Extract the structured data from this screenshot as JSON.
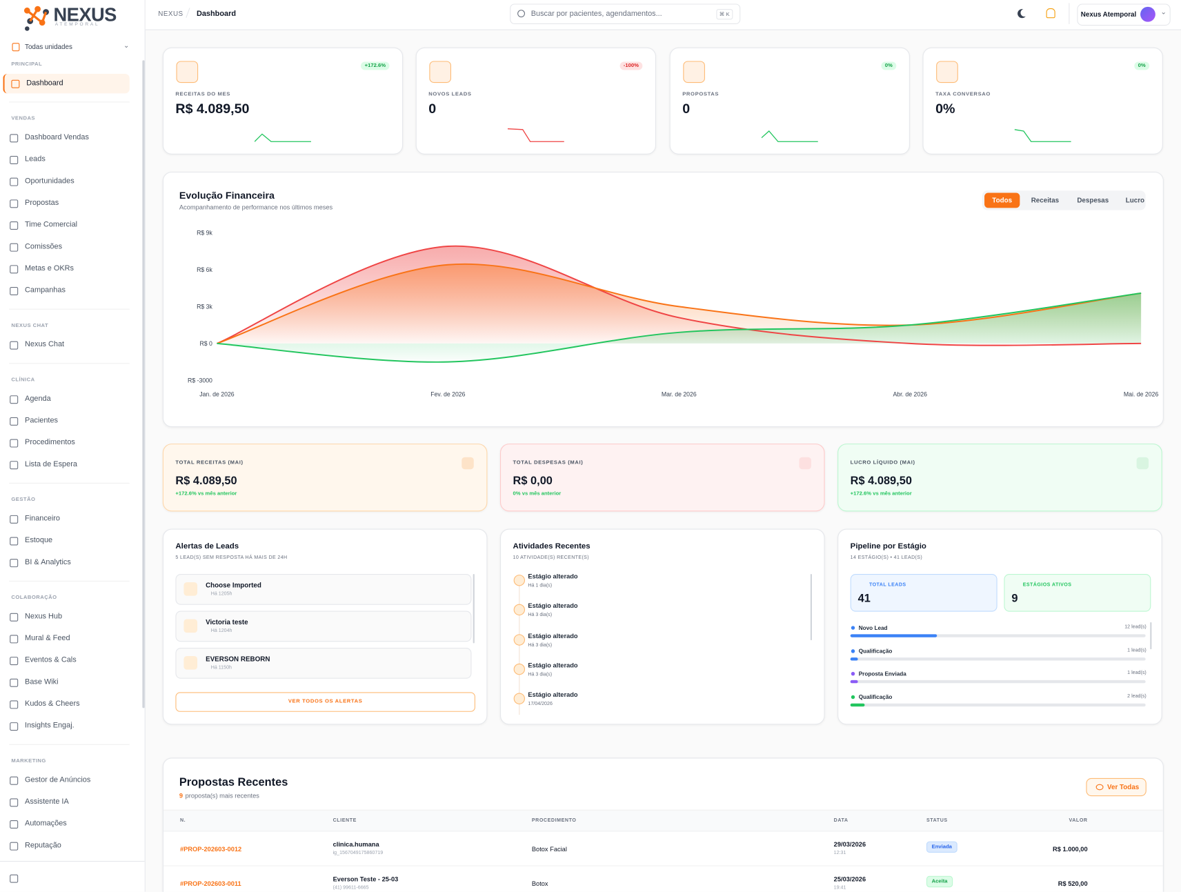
{
  "sidebar": {
    "logo_title": "NEXUS",
    "logo_subtitle": "ATEMPORAL",
    "unit_selector": "Todas unidades",
    "sections": [
      {
        "title": "PRINCIPAL",
        "items": [
          "Dashboard"
        ]
      },
      {
        "title": "VENDAS",
        "items": [
          "Dashboard Vendas",
          "Leads",
          "Oportunidades",
          "Propostas",
          "Time Comercial",
          "Comissões",
          "Metas e OKRs",
          "Campanhas"
        ]
      },
      {
        "title": "NEXUS CHAT",
        "items": [
          "Nexus Chat"
        ]
      },
      {
        "title": "CLÍNICA",
        "items": [
          "Agenda",
          "Pacientes",
          "Procedimentos",
          "Lista de Espera"
        ]
      },
      {
        "title": "GESTÃO",
        "items": [
          "Financeiro",
          "Estoque",
          "BI & Analytics"
        ]
      },
      {
        "title": "COLABORAÇÃO",
        "items": [
          "Nexus Hub",
          "Mural & Feed",
          "Eventos & Cals",
          "Base Wiki",
          "Kudos & Cheers",
          "Insights Engaj."
        ]
      },
      {
        "title": "MARKETING",
        "items": [
          "Gestor de Anúncios",
          "Assistente IA",
          "Automações",
          "Reputação"
        ]
      }
    ]
  },
  "topbar": {
    "breadcrumb": [
      "NEXUS",
      "Dashboard"
    ],
    "search_placeholder": "Buscar por pacientes, agendamentos...",
    "shortcut": "⌘ K",
    "user_name": "Nexus Atemporal"
  },
  "kpis": [
    {
      "label": "RECEITAS DO MES",
      "value": "R$ 4.089,50",
      "change": "+172.6%",
      "trend": "up"
    },
    {
      "label": "NOVOS LEADS",
      "value": "0",
      "change": "-100%",
      "trend": "down"
    },
    {
      "label": "PROPOSTAS",
      "value": "0",
      "change": "0%",
      "trend": "up"
    },
    {
      "label": "TAXA CONVERSAO",
      "value": "0%",
      "change": "0%",
      "trend": "up"
    }
  ],
  "chart_controls": [
    "Todos",
    "Receitas",
    "Despesas",
    "Lucro"
  ],
  "chart_data": {
    "type": "area",
    "title": "Evolução Financeira",
    "subtitle": "Acompanhamento de performance nos últimos meses",
    "categories": [
      "Jan. de 2026",
      "Fev. de 2026",
      "Mar. de 2026",
      "Abr. de 2026",
      "Mai. de 2026"
    ],
    "series": [
      {
        "name": "Despesas",
        "color": "#ef4444",
        "values": [
          0,
          7900,
          2100,
          0,
          0
        ]
      },
      {
        "name": "Receitas",
        "color": "#f97316",
        "values": [
          0,
          6400,
          3000,
          1500,
          4089.5
        ]
      },
      {
        "name": "Lucro",
        "color": "#22c55e",
        "values": [
          0,
          -1500,
          900,
          1500,
          4089.5
        ]
      }
    ],
    "ylim": [
      -3000,
      9000
    ],
    "yticks": [
      {
        "value": -3000,
        "label": "R$ -3000"
      },
      {
        "value": 0,
        "label": "R$ 0"
      },
      {
        "value": 3000,
        "label": "R$ 3k"
      },
      {
        "value": 6000,
        "label": "R$ 6k"
      },
      {
        "value": 9000,
        "label": "R$ 9k"
      }
    ],
    "grid": false
  },
  "summary": [
    {
      "label": "TOTAL RECEITAS (MAI)",
      "value": "R$ 4.089,50",
      "note": "+172.6% vs mês anterior",
      "tone": "orange"
    },
    {
      "label": "TOTAL DESPESAS (MAI)",
      "value": "R$ 0,00",
      "note": "0% vs mês anterior",
      "tone": "red"
    },
    {
      "label": "LUCRO LÍQUIDO (MAI)",
      "value": "R$ 4.089,50",
      "note": "+172.6% vs mês anterior",
      "tone": "green"
    }
  ],
  "lead_alerts": {
    "title": "Alertas de Leads",
    "subtitle": "5 LEAD(S) SEM RESPOSTA HÁ MAIS DE 24H",
    "items": [
      {
        "name": "Choose Imported",
        "time": "Há 1205h"
      },
      {
        "name": "Victoria teste",
        "time": "Há 1204h"
      },
      {
        "name": "EVERSON REBORN",
        "time": "Há 1150h"
      }
    ],
    "button": "VER TODOS OS ALERTAS"
  },
  "activities": {
    "title": "Atividades Recentes",
    "subtitle": "10 ATIVIDADE(S) RECENTE(S)",
    "items": [
      {
        "title": "Estágio alterado",
        "time": "Há 1 dia(s)"
      },
      {
        "title": "Estágio alterado",
        "time": "Há 3 dia(s)"
      },
      {
        "title": "Estágio alterado",
        "time": "Há 3 dia(s)"
      },
      {
        "title": "Estágio alterado",
        "time": "Há 3 dia(s)"
      },
      {
        "title": "Estágio alterado",
        "time": "17/04/2026"
      }
    ]
  },
  "pipeline": {
    "title": "Pipeline por Estágio",
    "subtitle": "14 ESTÁGIO(S) • 41 LEAD(S)",
    "total_label": "TOTAL LEADS",
    "total": 41,
    "active_label": "ESTÁGIOS ATIVOS",
    "active": 9,
    "stages": [
      {
        "name": "Novo Lead",
        "count": 12,
        "count_label": "12 lead(s)",
        "color": "#3b82f6"
      },
      {
        "name": "Qualificação",
        "count": 1,
        "count_label": "1 lead(s)",
        "color": "#3b82f6"
      },
      {
        "name": "Proposta Enviada",
        "count": 1,
        "count_label": "1 lead(s)",
        "color": "#8b5cf6"
      },
      {
        "name": "Qualificação",
        "count": 2,
        "count_label": "2 lead(s)",
        "color": "#22c55e"
      }
    ]
  },
  "proposals": {
    "title": "Propostas Recentes",
    "count": 9,
    "subtitle": "proposta(s) mais recentes",
    "button": "Ver Todas",
    "columns": [
      "N.",
      "CLIENTE",
      "PROCEDIMENTO",
      "DATA",
      "STATUS",
      "VALOR"
    ],
    "rows": [
      {
        "id": "#PROP-202603-0012",
        "client": "clinica.humana",
        "contact": "ig_1567049175860719",
        "procedure": "Botox Facial",
        "date": "29/03/2026",
        "time": "12:31",
        "status": "Enviada",
        "value": "R$ 1.000,00"
      },
      {
        "id": "#PROP-202603-0011",
        "client": "Everson Teste - 25-03",
        "contact": "(41) 99611-6665",
        "procedure": "Botox",
        "date": "25/03/2026",
        "time": "19:41",
        "status": "Aceita",
        "value": "R$ 520,00"
      }
    ]
  }
}
